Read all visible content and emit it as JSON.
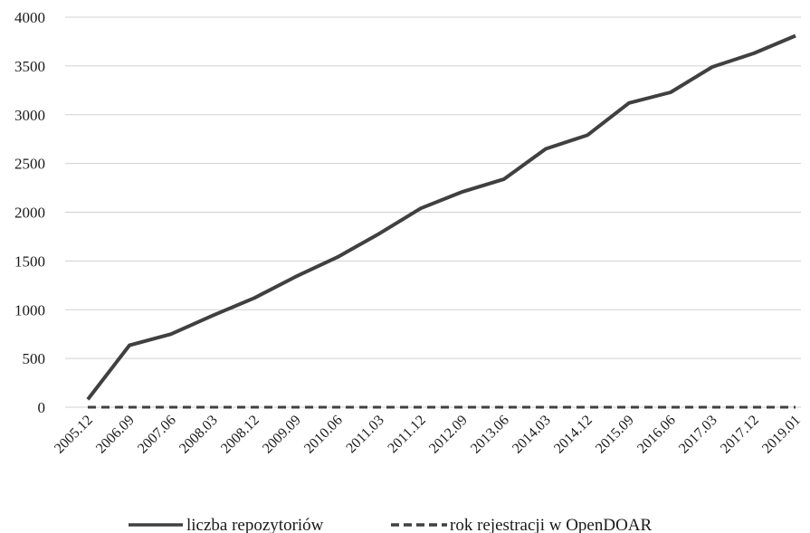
{
  "chart_data": {
    "type": "line",
    "title": "",
    "xlabel": "",
    "ylabel": "",
    "ylim": [
      0,
      4000
    ],
    "yticks": [
      0,
      500,
      1000,
      1500,
      2000,
      2500,
      3000,
      3500,
      4000
    ],
    "grid": true,
    "legend_position": "bottom",
    "categories": [
      "2005.12",
      "2006.09",
      "2007.06",
      "2008.03",
      "2008.12",
      "2009.09",
      "2010.06",
      "2011.03",
      "2011.12",
      "2012.09",
      "2013.06",
      "2014.03",
      "2014.12",
      "2015.09",
      "2016.06",
      "2017.03",
      "2017.12",
      "2019.01"
    ],
    "series": [
      {
        "name": "liczba repozytoriów",
        "style": "solid",
        "color": "#404040",
        "values": [
          80,
          635,
          750,
          940,
          1120,
          1340,
          1540,
          1780,
          2040,
          2210,
          2340,
          2650,
          2790,
          3120,
          3230,
          3490,
          3630,
          3810
        ]
      },
      {
        "name": "rok rejestracji w OpenDOAR",
        "style": "dashed",
        "color": "#404040",
        "values": [
          0,
          0,
          0,
          0,
          0,
          0,
          0,
          0,
          0,
          0,
          0,
          0,
          0,
          0,
          0,
          0,
          0,
          0
        ]
      }
    ]
  }
}
